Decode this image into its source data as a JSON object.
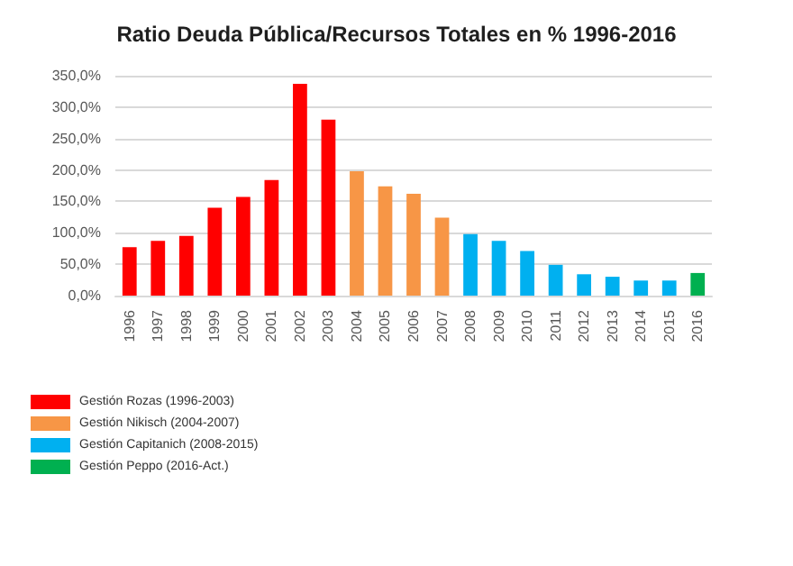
{
  "chart_data": {
    "type": "bar",
    "title": "Ratio Deuda Pública/Recursos Totales en % 1996-2016",
    "categories": [
      "1996",
      "1997",
      "1998",
      "1999",
      "2000",
      "2001",
      "2002",
      "2003",
      "2004",
      "2005",
      "2006",
      "2007",
      "2008",
      "2009",
      "2010",
      "2011",
      "2012",
      "2013",
      "2014",
      "2015",
      "2016"
    ],
    "series": [
      {
        "name": "Gestión Rozas (1996-2003)",
        "color": "#ff0000",
        "values": [
          77,
          87,
          95,
          140,
          157,
          184,
          337,
          280,
          null,
          null,
          null,
          null,
          null,
          null,
          null,
          null,
          null,
          null,
          null,
          null,
          null
        ]
      },
      {
        "name": "Gestión Nikisch (2004-2007)",
        "color": "#f79646",
        "values": [
          null,
          null,
          null,
          null,
          null,
          null,
          null,
          null,
          198,
          174,
          162,
          124,
          null,
          null,
          null,
          null,
          null,
          null,
          null,
          null,
          null
        ]
      },
      {
        "name": "Gestión Capitanich (2008-2015)",
        "color": "#00b0f0",
        "values": [
          null,
          null,
          null,
          null,
          null,
          null,
          null,
          null,
          null,
          null,
          null,
          null,
          98,
          87,
          71,
          49,
          34,
          30,
          24,
          24,
          null
        ]
      },
      {
        "name": "Gestión Peppo (2016-Act.)",
        "color": "#00b050",
        "values": [
          null,
          null,
          null,
          null,
          null,
          null,
          null,
          null,
          null,
          null,
          null,
          null,
          null,
          null,
          null,
          null,
          null,
          null,
          null,
          null,
          36
        ]
      }
    ],
    "stacked": true,
    "ylim": [
      0,
      350
    ],
    "yticks": [
      {
        "value": 0,
        "label": "0,0%"
      },
      {
        "value": 50,
        "label": "50,0%"
      },
      {
        "value": 100,
        "label": "100,0%"
      },
      {
        "value": 150,
        "label": "150,0%"
      },
      {
        "value": 200,
        "label": "200,0%"
      },
      {
        "value": 250,
        "label": "250,0%"
      },
      {
        "value": 300,
        "label": "300,0%"
      },
      {
        "value": 350,
        "label": "350,0%"
      }
    ],
    "grid": "y",
    "legend": "bottom left"
  }
}
